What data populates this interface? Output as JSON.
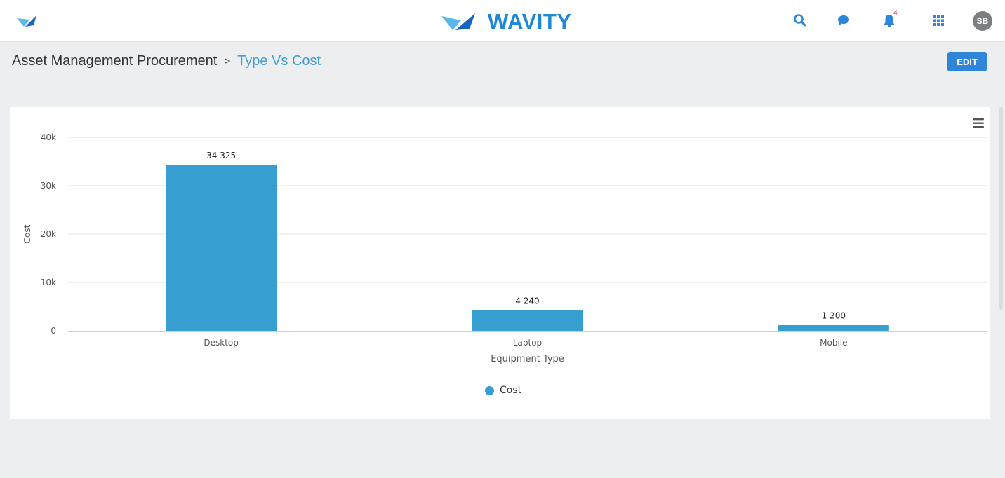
{
  "app": {
    "brand_name": "WAVITY",
    "brand_color": "#1e88d8",
    "accent_color": "#3c9fd3",
    "notification_count": "4",
    "user_initials": "SB"
  },
  "header": {
    "icons": [
      "search-icon",
      "chat-icon",
      "bell-icon",
      "apps-grid-icon"
    ]
  },
  "breadcrumb": {
    "parent": "Asset Management Procurement",
    "separator": ">",
    "current": "Type Vs Cost"
  },
  "toolbar": {
    "edit_label": "EDIT"
  },
  "chart_data": {
    "type": "bar",
    "categories": [
      "Desktop",
      "Laptop",
      "Mobile"
    ],
    "series": [
      {
        "name": "Cost",
        "values": [
          34325,
          4240,
          1200
        ],
        "color": "#379fcf"
      }
    ],
    "data_labels": [
      "34 325",
      "4 240",
      "1 200"
    ],
    "xlabel": "Equipment Type",
    "ylabel": "Cost",
    "ylim": [
      0,
      40000
    ],
    "y_ticks": [
      0,
      10000,
      20000,
      30000,
      40000
    ],
    "y_tick_labels": [
      "0",
      "10k",
      "20k",
      "30k",
      "40k"
    ],
    "grid": true,
    "legend_position": "bottom"
  }
}
